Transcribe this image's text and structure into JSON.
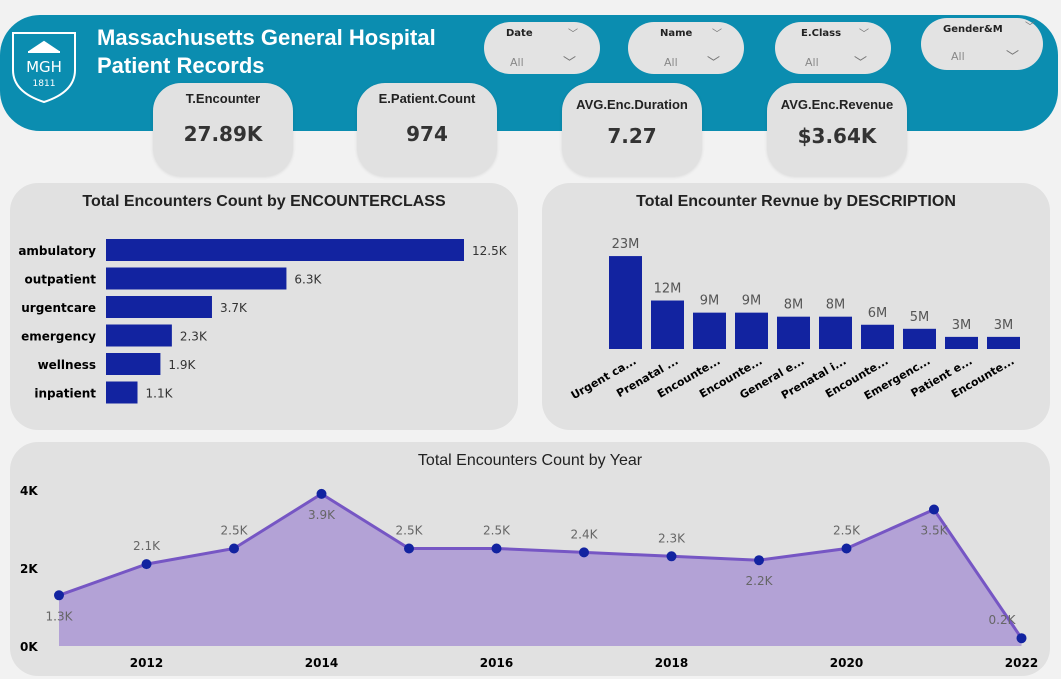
{
  "header": {
    "title_line1": "Massachusetts General Hospital",
    "title_line2": "Patient Records",
    "logo_text": "MGH",
    "logo_year": "1811",
    "band_color": "#0b8db0"
  },
  "slicers": [
    {
      "label": "Date",
      "value": "All"
    },
    {
      "label": "Name",
      "value": "All"
    },
    {
      "label": "E.Class",
      "value": "All"
    },
    {
      "label": "Gender&M",
      "value": "All"
    }
  ],
  "kpis": [
    {
      "label": "T.Encounter",
      "value": "27.89K"
    },
    {
      "label": "E.Patient.Count",
      "value": "974"
    },
    {
      "label": "AVG.Enc.Duration",
      "value": "7.27"
    },
    {
      "label": "AVG.Enc.Revenue",
      "value": "$3.64K"
    }
  ],
  "chart_data": [
    {
      "type": "bar",
      "orientation": "horizontal",
      "title": "Total Encounters Count by ENCOUNTERCLASS",
      "categories": [
        "ambulatory",
        "outpatient",
        "urgentcare",
        "emergency",
        "wellness",
        "inpatient"
      ],
      "values": [
        12500,
        6300,
        3700,
        2300,
        1900,
        1100
      ],
      "data_labels": [
        "12.5K",
        "6.3K",
        "3.7K",
        "2.3K",
        "1.9K",
        "1.1K"
      ],
      "color": "#1223a0"
    },
    {
      "type": "bar",
      "title": "Total Encounter Revnue by DESCRIPTION",
      "categories": [
        "Urgent ca...",
        "Prenatal ...",
        "Encounte...",
        "Encounte...",
        "General e...",
        "Prenatal i...",
        "Encounte...",
        "Emergenc...",
        "Patient e...",
        "Encounte..."
      ],
      "values": [
        23,
        12,
        9,
        9,
        8,
        8,
        6,
        5,
        3,
        3
      ],
      "unit": "M",
      "data_labels": [
        "23M",
        "12M",
        "9M",
        "9M",
        "8M",
        "8M",
        "6M",
        "5M",
        "3M",
        "3M"
      ],
      "color": "#1223a0"
    },
    {
      "type": "area",
      "title": "Total Encounters Count by Year",
      "x": [
        2011,
        2012,
        2013,
        2014,
        2015,
        2016,
        2017,
        2018,
        2019,
        2020,
        2021,
        2022
      ],
      "values": [
        1300,
        2100,
        2500,
        3900,
        2500,
        2500,
        2400,
        2300,
        2200,
        2500,
        3500,
        200
      ],
      "data_labels": [
        "1.3K",
        "2.1K",
        "2.5K",
        "3.9K",
        "2.5K",
        "2.5K",
        "2.4K",
        "2.3K",
        "2.2K",
        "2.5K",
        "3.5K",
        "0.2K"
      ],
      "y_ticks": [
        "0K",
        "2K",
        "4K"
      ],
      "x_ticks": [
        "2012",
        "2014",
        "2016",
        "2018",
        "2020",
        "2022"
      ],
      "ylim": [
        0,
        4000
      ],
      "fill": "#b3a2d6",
      "line": "#7656c4",
      "marker": "#1223a0"
    }
  ]
}
